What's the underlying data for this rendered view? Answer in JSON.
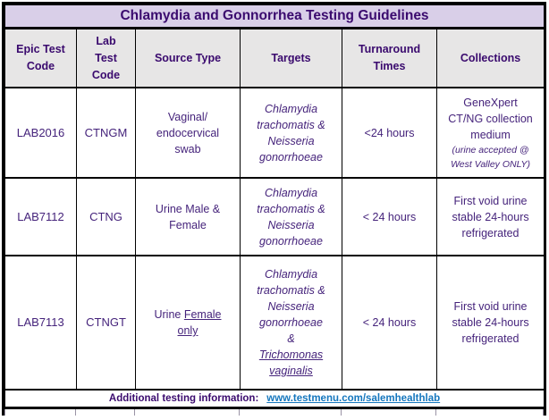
{
  "table": {
    "title": "Chlamydia and Gonnorrhea Testing Guidelines",
    "columns": [
      "Epic Test\nCode",
      "Lab\nTest\nCode",
      "Source Type",
      "Targets",
      "Turnaround\nTimes",
      "Collections"
    ],
    "rows": [
      {
        "cells": [
          {
            "lines": [
              [
                {
                  "t": "LAB2016"
                }
              ]
            ]
          },
          {
            "lines": [
              [
                {
                  "t": "CTNGM"
                }
              ]
            ]
          },
          {
            "lines": [
              [
                {
                  "t": "Vaginal/"
                }
              ],
              [
                {
                  "t": "endocervical"
                }
              ],
              [
                {
                  "t": "swab"
                }
              ]
            ]
          },
          {
            "lines": [
              [
                {
                  "t": "Chlamydia",
                  "i": 1
                }
              ],
              [
                {
                  "t": "trachomatis &",
                  "i": 1
                }
              ],
              [
                {
                  "t": "Neisseria",
                  "i": 1
                }
              ],
              [
                {
                  "t": "gonorrhoeae",
                  "i": 1
                }
              ]
            ]
          },
          {
            "lines": [
              [
                {
                  "t": "<24 hours"
                }
              ]
            ]
          },
          {
            "lines": [
              [
                {
                  "t": "GeneXpert"
                }
              ],
              [
                {
                  "t": "CT/NG collection"
                }
              ],
              [
                {
                  "t": "medium"
                }
              ],
              [
                {
                  "t": "(urine accepted @",
                  "i": 1,
                  "s": 1
                }
              ],
              [
                {
                  "t": "West Valley ONLY)",
                  "i": 1,
                  "s": 1
                }
              ]
            ]
          }
        ]
      },
      {
        "cells": [
          {
            "lines": [
              [
                {
                  "t": "LAB7112"
                }
              ]
            ]
          },
          {
            "lines": [
              [
                {
                  "t": "CTNG"
                }
              ]
            ]
          },
          {
            "lines": [
              [
                {
                  "t": "Urine Male &"
                }
              ],
              [
                {
                  "t": "Female"
                }
              ]
            ]
          },
          {
            "lines": [
              [
                {
                  "t": "Chlamydia",
                  "i": 1
                }
              ],
              [
                {
                  "t": "trachomatis &",
                  "i": 1
                }
              ],
              [
                {
                  "t": "Neisseria",
                  "i": 1
                }
              ],
              [
                {
                  "t": "gonorrhoeae",
                  "i": 1
                }
              ]
            ]
          },
          {
            "lines": [
              [
                {
                  "t": "< 24 hours"
                }
              ]
            ]
          },
          {
            "lines": [
              [
                {
                  "t": "First void urine"
                }
              ],
              [
                {
                  "t": "stable 24-hours"
                }
              ],
              [
                {
                  "t": "refrigerated"
                }
              ]
            ]
          }
        ]
      },
      {
        "cells": [
          {
            "lines": [
              [
                {
                  "t": "LAB7113"
                }
              ]
            ]
          },
          {
            "lines": [
              [
                {
                  "t": "CTNGT"
                }
              ]
            ]
          },
          {
            "lines": [
              [
                {
                  "t": "Urine "
                },
                {
                  "t": "Female ",
                  "u": 1
                }
              ],
              [
                {
                  "t": "only",
                  "u": 1
                }
              ]
            ]
          },
          {
            "lines": [
              [
                {
                  "t": "Chlamydia",
                  "i": 1
                }
              ],
              [
                {
                  "t": "trachomatis &",
                  "i": 1
                }
              ],
              [
                {
                  "t": "Neisseria",
                  "i": 1
                }
              ],
              [
                {
                  "t": "gonorrhoeae",
                  "i": 1
                }
              ],
              [
                {
                  "t": "&",
                  "i": 1
                }
              ],
              [
                {
                  "t": "Trichomonas ",
                  "i": 1,
                  "u": 1
                }
              ],
              [
                {
                  "t": "vaginalis",
                  "i": 1,
                  "u": 1
                }
              ]
            ]
          },
          {
            "lines": [
              [
                {
                  "t": "< 24 hours"
                }
              ]
            ]
          },
          {
            "lines": [
              [
                {
                  "t": "First void urine"
                }
              ],
              [
                {
                  "t": "stable 24-hours"
                }
              ],
              [
                {
                  "t": "refrigerated"
                }
              ]
            ]
          }
        ]
      }
    ],
    "footer": {
      "label": "Additional testing information:",
      "link": "www.testmenu.com/salemhealthlab"
    }
  },
  "colors": {
    "title_bg": "#d9cfe8",
    "header_bg": "#e7e6e6",
    "heading_text": "#3a0a6e",
    "body_text": "#45237b",
    "link_blue": "#1577be",
    "border": "#000000"
  }
}
